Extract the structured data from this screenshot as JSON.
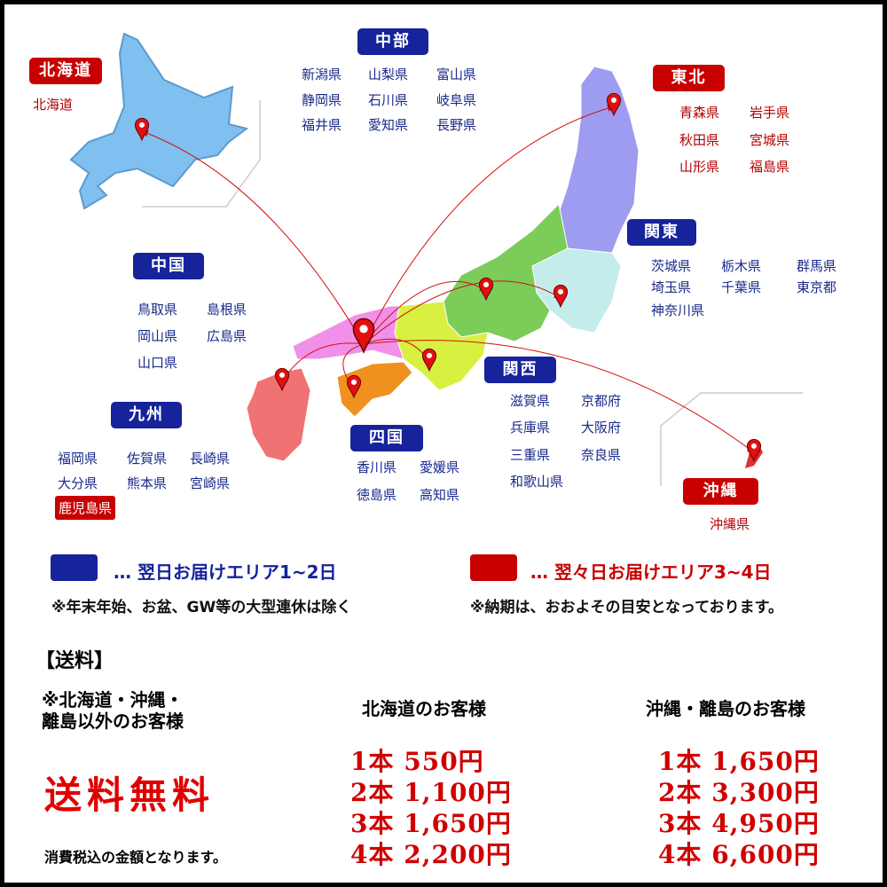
{
  "colors": {
    "next_day": "#16239b",
    "two_day": "#c80000",
    "hokkaido": "#80c0f0",
    "tohoku": "#9d9cf0",
    "kanto": "#c4ecea",
    "chubu": "#7ccc5a",
    "kansai": "#d8f040",
    "chugoku": "#f090e8",
    "shikoku": "#f0901e",
    "kyushu": "#f07272",
    "okinawa": "#e03030"
  },
  "regions": {
    "hokkaido": {
      "title": "北海道",
      "prefs": [
        "北海道"
      ]
    },
    "chubu": {
      "title": "中部",
      "prefs": [
        "新潟県",
        "山梨県",
        "富山県",
        "静岡県",
        "石川県",
        "岐阜県",
        "福井県",
        "愛知県",
        "長野県"
      ]
    },
    "tohoku": {
      "title": "東北",
      "prefs": [
        "青森県",
        "岩手県",
        "秋田県",
        "宮城県",
        "山形県",
        "福島県"
      ]
    },
    "kanto": {
      "title": "関東",
      "prefs": [
        "茨城県",
        "栃木県",
        "群馬県",
        "埼玉県",
        "千葉県",
        "東京都",
        "神奈川県"
      ]
    },
    "chugoku": {
      "title": "中国",
      "prefs": [
        "鳥取県",
        "島根県",
        "岡山県",
        "広島県",
        "山口県"
      ]
    },
    "kyushu": {
      "title": "九州",
      "prefs": [
        "福岡県",
        "佐賀県",
        "長崎県",
        "大分県",
        "熊本県",
        "宮崎県",
        "鹿児島県"
      ]
    },
    "shikoku": {
      "title": "四国",
      "prefs": [
        "香川県",
        "愛媛県",
        "徳島県",
        "高知県"
      ]
    },
    "kansai": {
      "title": "関西",
      "prefs": [
        "滋賀県",
        "京都府",
        "兵庫県",
        "大阪府",
        "三重県",
        "奈良県",
        "和歌山県"
      ]
    },
    "okinawa": {
      "title": "沖縄",
      "prefs": [
        "沖縄県"
      ]
    }
  },
  "legend": {
    "next_day": "… 翌日お届けエリア1~2日",
    "two_day": "… 翌々日お届けエリア3~4日",
    "note_left": "※年末年始、お盆、GW等の大型連休は除く",
    "note_right": "※納期は、おおよその目安となっております。"
  },
  "shipping": {
    "heading": "【送料】",
    "other_line1": "※北海道・沖縄・",
    "other_line2": "離島以外のお客様",
    "free": "送料無料",
    "tax_note": "消費税込の金額となります。",
    "hokkaido_header": "北海道のお客様",
    "okinawa_header": "沖縄・離島のお客様",
    "hokkaido_prices": [
      "1本 550円",
      "2本 1,100円",
      "3本 1,650円",
      "4本 2,200円"
    ],
    "okinawa_prices": [
      "1本 1,650円",
      "2本 3,300円",
      "3本 4,950円",
      "4本 6,600円"
    ]
  }
}
